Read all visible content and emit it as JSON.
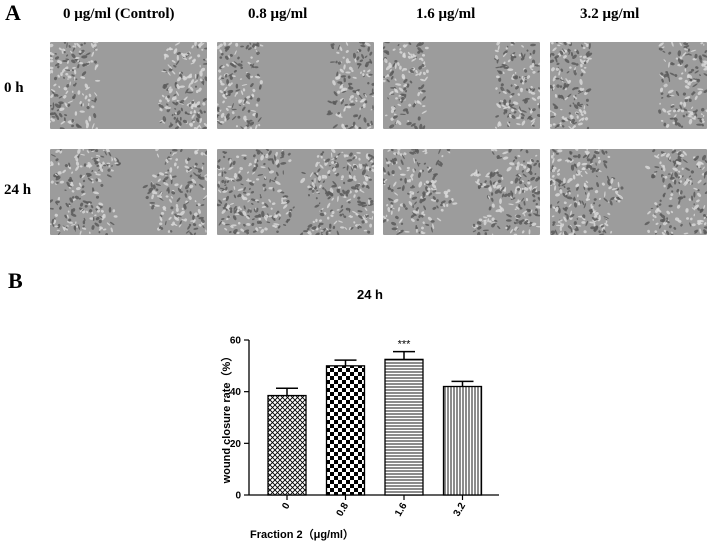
{
  "panel_a": {
    "letter": "A",
    "columns": [
      "0 μg/ml (Control)",
      "0.8 μg/ml",
      "1.6 μg/ml",
      "3.2 μg/ml"
    ],
    "rows": [
      "0 h",
      "24 h"
    ]
  },
  "panel_b": {
    "letter": "B"
  },
  "chart_data": {
    "type": "bar",
    "title": "24 h",
    "xlabel": "Fraction 2（μg/ml）",
    "ylabel": "wound closure rate（%）",
    "categories": [
      "0",
      "0.8",
      "1.6",
      "3.2"
    ],
    "values": [
      38.5,
      50,
      52.5,
      42
    ],
    "errors": [
      2.8,
      2.2,
      3,
      2
    ],
    "patterns": [
      "diagonal-crosshatch",
      "checkerboard",
      "horizontal-lines",
      "vertical-lines"
    ],
    "annotations": [
      {
        "category": "1.6",
        "text": "***"
      }
    ],
    "ylim": [
      0,
      60
    ],
    "yticks": [
      0,
      20,
      40,
      60
    ]
  }
}
